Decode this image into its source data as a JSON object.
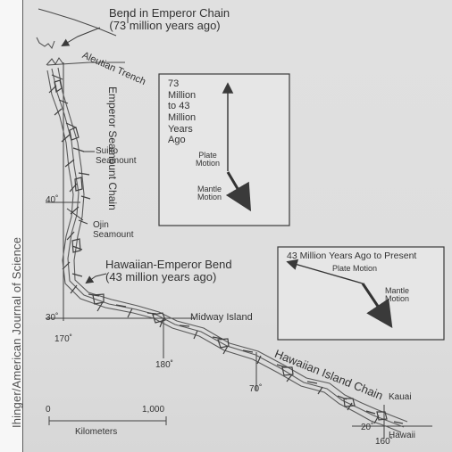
{
  "credit": "Ihinger/American Journal of Science",
  "labels": {
    "bend_emperor_line1": "Bend in Emperor Chain",
    "bend_emperor_line2": "(73 million years ago)",
    "aleutian": "Aleutian Trench",
    "emperor_chain": "Emperor Seamount Chain",
    "suiko_line1": "Suiko",
    "suiko_line2": "Seamount",
    "ojin_line1": "Ojin",
    "ojin_line2": "Seamount",
    "hawaiian_emperor_line1": "Hawaiian-Emperor Bend",
    "hawaiian_emperor_line2": "(43 million years ago)",
    "midway": "Midway Island",
    "hawaiian_chain": "Hawaiian Island Chain",
    "kauai": "Kauai",
    "hawaii": "Hawaii"
  },
  "coordinates": {
    "lat_40": "40˚",
    "lat_30": "30˚",
    "lat_20": "20˚",
    "lon_170": "170˚",
    "lon_180": "180˚",
    "lon_70": "70˚",
    "lon_160": "160˚"
  },
  "scale": {
    "zero": "0",
    "thousand": "1,000",
    "unit": "Kilometers"
  },
  "motion_box_1": {
    "line1": "73",
    "line2": "Million",
    "line3": "to 43",
    "line4": "Million",
    "line5": "Years",
    "line6": "Ago",
    "plate_motion": "Plate\nMotion",
    "mantle_motion": "Mantle\nMotion"
  },
  "motion_box_2": {
    "title": "43 Million Years Ago to Present",
    "plate_motion": "Plate Motion",
    "mantle_motion": "Mantle\nMotion"
  },
  "colors": {
    "background": "#dedede",
    "ink": "#3a3a3a",
    "line": "#555555",
    "box": "#e6e6e6"
  }
}
